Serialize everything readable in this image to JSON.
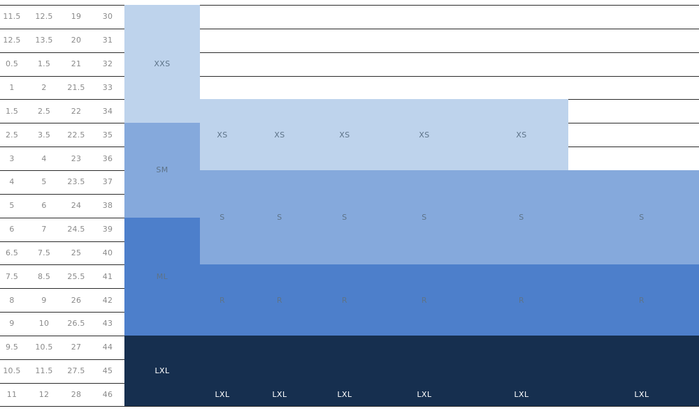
{
  "colors": {
    "band_xs": "#bed3ec",
    "band_sm": "#85a9dc",
    "band_ml": "#4d7fcb",
    "band_lxl": "#162f4f",
    "label_light": "#5d7388",
    "label_dark": "#ffffff",
    "table_text": "#8a8a8a",
    "grid_line": "#2a2a2a"
  },
  "size_table": {
    "rows": [
      [
        "11.5",
        "12.5",
        "19",
        "30"
      ],
      [
        "12.5",
        "13.5",
        "20",
        "31"
      ],
      [
        "0.5",
        "1.5",
        "21",
        "32"
      ],
      [
        "1",
        "2",
        "21.5",
        "33"
      ],
      [
        "1.5",
        "2.5",
        "22",
        "34"
      ],
      [
        "2.5",
        "3.5",
        "22.5",
        "35"
      ],
      [
        "3",
        "4",
        "23",
        "36"
      ],
      [
        "4",
        "5",
        "23.5",
        "37"
      ],
      [
        "5",
        "6",
        "24",
        "38"
      ],
      [
        "6",
        "7",
        "24.5",
        "39"
      ],
      [
        "6.5",
        "7.5",
        "25",
        "40"
      ],
      [
        "7.5",
        "8.5",
        "25.5",
        "41"
      ],
      [
        "8",
        "9",
        "26",
        "42"
      ],
      [
        "9",
        "10",
        "26.5",
        "43"
      ],
      [
        "9.5",
        "10.5",
        "27",
        "44"
      ],
      [
        "10.5",
        "11.5",
        "27.5",
        "45"
      ],
      [
        "11",
        "12",
        "28",
        "46"
      ]
    ]
  },
  "size_groups": [
    {
      "label": "XXS",
      "first_row": 0,
      "last_row": 4,
      "tone": "xs"
    },
    {
      "label": "SM",
      "first_row": 5,
      "last_row": 8,
      "tone": "sm"
    },
    {
      "label": "ML",
      "first_row": 9,
      "last_row": 13,
      "tone": "ml"
    },
    {
      "label": "LXL",
      "first_row": 14,
      "last_row": 16,
      "tone": "lxl"
    }
  ],
  "model_columns": [
    {
      "labels": [
        "XS",
        "S",
        "R",
        "LXL"
      ]
    },
    {
      "labels": [
        "XS",
        "S",
        "R",
        "LXL"
      ]
    },
    {
      "labels": [
        "XS",
        "S",
        "R",
        "LXL"
      ]
    },
    {
      "labels": [
        "XS",
        "S",
        "R",
        "LXL"
      ]
    },
    {
      "labels": [
        "XS",
        "S",
        "R",
        "LXL"
      ]
    },
    {
      "labels": [
        "",
        "S",
        "R",
        "LXL"
      ]
    }
  ],
  "model_bands": [
    {
      "tone": "xs",
      "first_row": 4,
      "last_row": 6,
      "last_column": 4
    },
    {
      "tone": "sm",
      "first_row": 7,
      "last_row": 10,
      "last_column": 5
    },
    {
      "tone": "ml",
      "first_row": 11,
      "last_row": 13,
      "last_column": 5
    },
    {
      "tone": "lxl",
      "first_row": 14,
      "last_row": 16,
      "last_column": 5
    }
  ]
}
